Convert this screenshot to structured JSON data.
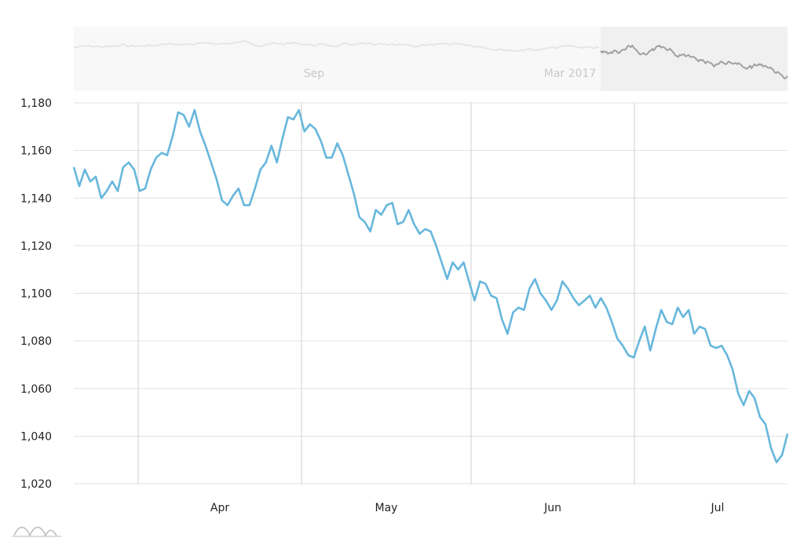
{
  "chart_data": {
    "type": "line",
    "x_labels": [
      "Apr",
      "May",
      "Jun",
      "Jul"
    ],
    "y_ticks": [
      "1,020",
      "1,040",
      "1,060",
      "1,080",
      "1,100",
      "1,120",
      "1,140",
      "1,160",
      "1,180"
    ],
    "ylim": [
      1020,
      1180
    ],
    "grid": true,
    "series": [
      {
        "values": [
          1153,
          1145,
          1152,
          1147,
          1149,
          1140,
          1143,
          1147,
          1143,
          1153,
          1155,
          1152,
          1143,
          1144,
          1152,
          1157,
          1159,
          1158,
          1166,
          1176,
          1175,
          1170,
          1177,
          1168,
          1162,
          1155,
          1148,
          1139,
          1137,
          1141,
          1144,
          1137,
          1137,
          1144,
          1152,
          1155,
          1162,
          1155,
          1165,
          1174,
          1173,
          1177,
          1168,
          1171,
          1169,
          1164,
          1157,
          1157,
          1163,
          1158,
          1150,
          1142,
          1132,
          1130,
          1126,
          1135,
          1133,
          1137,
          1138,
          1129,
          1130,
          1135,
          1129,
          1125,
          1127,
          1126,
          1120,
          1113,
          1106,
          1113,
          1110,
          1113,
          1105,
          1097,
          1105,
          1104,
          1099,
          1098,
          1089,
          1083,
          1092,
          1094,
          1093,
          1102,
          1106,
          1100,
          1097,
          1093,
          1097,
          1105,
          1102,
          1098,
          1095,
          1097,
          1099,
          1094,
          1098,
          1094,
          1088,
          1081,
          1078,
          1074,
          1073,
          1080,
          1086,
          1076,
          1085,
          1093,
          1088,
          1087,
          1094,
          1090,
          1093,
          1083,
          1086,
          1085,
          1078,
          1077,
          1078,
          1074,
          1068,
          1058,
          1053,
          1059,
          1056,
          1048,
          1045,
          1035,
          1029,
          1032,
          1041
        ],
        "color": "#67b7dc"
      }
    ],
    "navigator": {
      "labels": [
        "Sep",
        "Mar 2017"
      ],
      "full_color": "#e6e6e6",
      "selected_color": "#a0a0a0"
    }
  },
  "colors": {
    "grid": "#e0e0e0",
    "vgrid": "#cfcfcf",
    "navigator_bg": "#f8f8f8",
    "navigator_selected_bg": "#f0f0f0"
  },
  "icons": {
    "navigator": "minimap-icon"
  }
}
